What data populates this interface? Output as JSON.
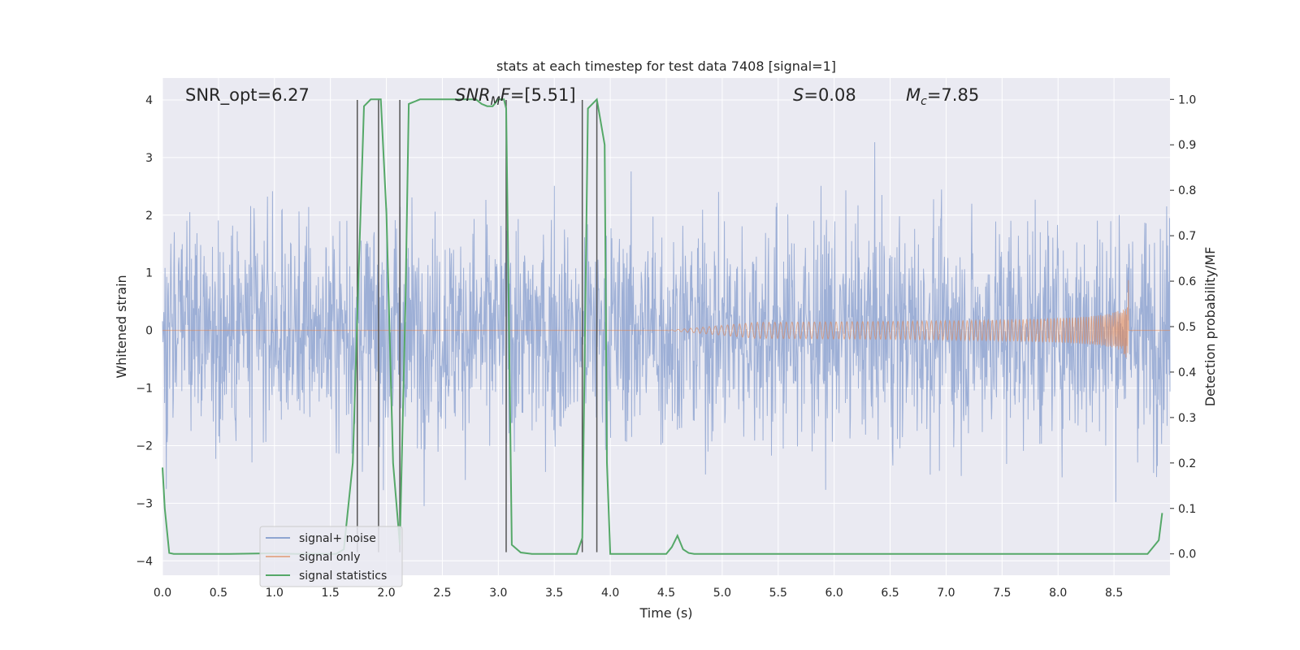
{
  "chart_data": {
    "type": "line",
    "title": "stats at each timestep for test data 7408 [signal=1]",
    "xlabel": "Time (s)",
    "ylabel_left": "Whitened strain",
    "ylabel_right": "Detection probability/MF",
    "xlim": [
      0.0,
      9.0
    ],
    "ylim_left": [
      -4.25,
      4.38
    ],
    "ylim_right": [
      -0.047,
      1.047
    ],
    "x_ticks": [
      "0.0",
      "0.5",
      "1.0",
      "1.5",
      "2.0",
      "2.5",
      "3.0",
      "3.5",
      "4.0",
      "4.5",
      "5.0",
      "5.5",
      "6.0",
      "6.5",
      "7.0",
      "7.5",
      "8.0",
      "8.5"
    ],
    "y_ticks_left": [
      "−4",
      "−3",
      "−2",
      "−1",
      "0",
      "1",
      "2",
      "3",
      "4"
    ],
    "y_ticks_right": [
      "0.0",
      "0.1",
      "0.2",
      "0.3",
      "0.4",
      "0.5",
      "0.6",
      "0.7",
      "0.8",
      "0.9",
      "1.0"
    ],
    "annotations": {
      "snr_opt": "SNR_opt=6.27",
      "snr_mf_label": "SNR",
      "snr_mf_sub": "M",
      "snr_mf_label_tail": "F",
      "snr_mf_value": "=[5.51]",
      "s_label": "S",
      "s_value": "=0.08",
      "mc_label": "M",
      "mc_sub": "c",
      "mc_value": "=7.85"
    },
    "legend": {
      "position": "lower-left",
      "entries": [
        {
          "label": "signal+ noise",
          "color": "#8fa5d1"
        },
        {
          "label": "signal only",
          "color": "#dd8452"
        },
        {
          "label": "signal statistics",
          "color": "#55a868"
        }
      ]
    },
    "series": [
      {
        "name": "signal+ noise",
        "color": "#8fa5d1",
        "description": "whitened noisy strain, amplitude within about ±4",
        "t_range": [
          0.0,
          9.0
        ]
      },
      {
        "name": "signal only",
        "color": "#dd8452",
        "chirp_start": 4.5,
        "chirp_end": 8.63,
        "peak_amplitude": 0.75
      },
      {
        "name": "signal statistics",
        "color": "#55a868",
        "x": [
          0.0,
          0.02,
          0.06,
          0.1,
          0.3,
          0.6,
          0.9,
          1.0,
          1.2,
          1.4,
          1.55,
          1.62,
          1.7,
          1.75,
          1.8,
          1.86,
          1.95,
          2.0,
          2.06,
          2.12,
          2.17,
          2.2,
          2.3,
          2.5,
          2.7,
          2.8,
          2.85,
          2.9,
          2.95,
          3.0,
          3.05,
          3.07,
          3.12,
          3.2,
          3.3,
          3.5,
          3.6,
          3.7,
          3.75,
          3.8,
          3.88,
          3.95,
          3.97,
          4.0,
          4.2,
          4.4,
          4.5,
          4.55,
          4.6,
          4.65,
          4.7,
          4.75,
          5.0,
          6.0,
          7.0,
          8.0,
          8.5,
          8.7,
          8.8,
          8.9,
          8.93
        ],
        "y": [
          0.19,
          0.1,
          0.002,
          0.0,
          0.0,
          0.0,
          0.001,
          0.001,
          0.0,
          0.0,
          0.0,
          0.01,
          0.2,
          0.6,
          0.985,
          1.0,
          1.0,
          0.75,
          0.2,
          0.02,
          0.55,
          0.99,
          1.0,
          1.0,
          1.0,
          1.0,
          0.99,
          0.985,
          0.985,
          1.0,
          1.0,
          0.98,
          0.02,
          0.003,
          0.0,
          0.0,
          0.0,
          0.0,
          0.035,
          0.98,
          1.0,
          0.9,
          0.2,
          0.0,
          0.0,
          0.0,
          0.0,
          0.015,
          0.04,
          0.01,
          0.002,
          0.0,
          0.0,
          0.0,
          0.0,
          0.0,
          0.0,
          0.0,
          0.0,
          0.03,
          0.09
        ]
      }
    ],
    "vertical_lines": [
      1.74,
      1.93,
      2.12,
      3.07,
      3.75,
      3.88
    ]
  }
}
